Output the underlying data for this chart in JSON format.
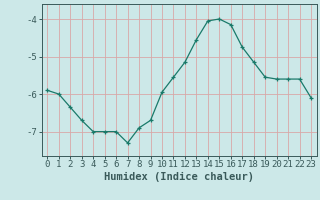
{
  "x": [
    0,
    1,
    2,
    3,
    4,
    5,
    6,
    7,
    8,
    9,
    10,
    11,
    12,
    13,
    14,
    15,
    16,
    17,
    18,
    19,
    20,
    21,
    22,
    23
  ],
  "y": [
    -5.9,
    -6.0,
    -6.35,
    -6.7,
    -7.0,
    -7.0,
    -7.0,
    -7.3,
    -6.9,
    -6.7,
    -5.95,
    -5.55,
    -5.15,
    -4.55,
    -4.05,
    -4.0,
    -4.15,
    -4.75,
    -5.15,
    -5.55,
    -5.6,
    -5.6,
    -5.6,
    -6.1
  ],
  "line_color": "#1a7a6a",
  "marker": "+",
  "marker_color": "#1a7a6a",
  "bg_color": "#cce8e8",
  "plot_bg_color": "#cce8e8",
  "grid_color": "#d8a8a8",
  "axis_color": "#3a5a5a",
  "text_color": "#3a5a5a",
  "xlabel": "Humidex (Indice chaleur)",
  "ylim": [
    -7.65,
    -3.6
  ],
  "xlim": [
    -0.5,
    23.5
  ],
  "yticks": [
    -7,
    -6,
    -5,
    -4
  ],
  "xticks": [
    0,
    1,
    2,
    3,
    4,
    5,
    6,
    7,
    8,
    9,
    10,
    11,
    12,
    13,
    14,
    15,
    16,
    17,
    18,
    19,
    20,
    21,
    22,
    23
  ],
  "label_fontsize": 7.5,
  "tick_fontsize": 6.5
}
